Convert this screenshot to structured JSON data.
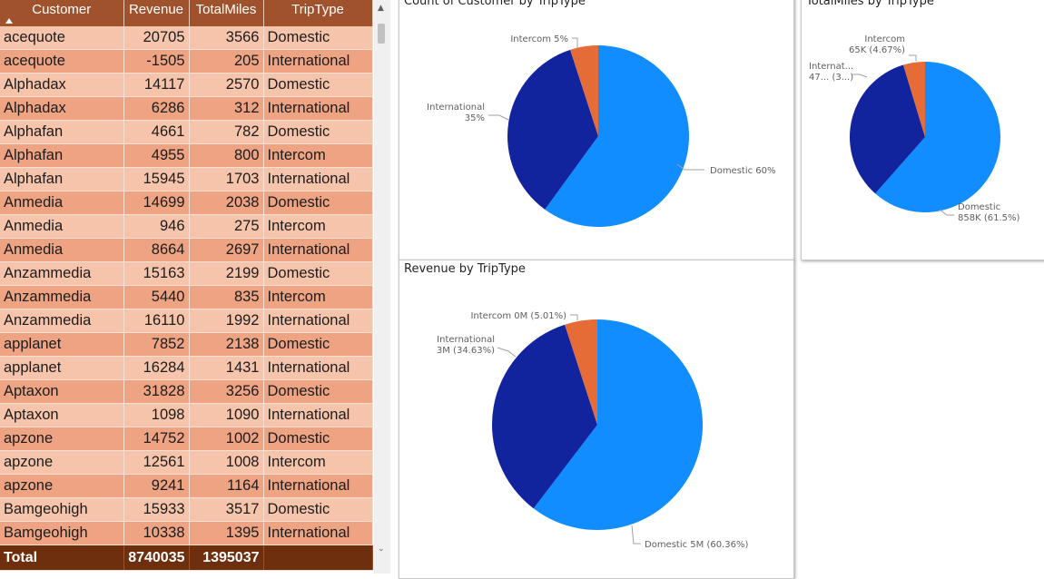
{
  "table": {
    "columns": [
      "Customer",
      "Revenue",
      "TotalMiles",
      "TripType"
    ],
    "rows": [
      [
        "acequote",
        "20705",
        "3566",
        "Domestic"
      ],
      [
        "acequote",
        "-1505",
        "205",
        "International"
      ],
      [
        "Alphadax",
        "14117",
        "2570",
        "Domestic"
      ],
      [
        "Alphadax",
        "6286",
        "312",
        "International"
      ],
      [
        "Alphafan",
        "4661",
        "782",
        "Domestic"
      ],
      [
        "Alphafan",
        "4955",
        "800",
        "Intercom"
      ],
      [
        "Alphafan",
        "15945",
        "1703",
        "International"
      ],
      [
        "Anmedia",
        "14699",
        "2038",
        "Domestic"
      ],
      [
        "Anmedia",
        "946",
        "275",
        "Intercom"
      ],
      [
        "Anmedia",
        "8664",
        "2697",
        "International"
      ],
      [
        "Anzammedia",
        "15163",
        "2199",
        "Domestic"
      ],
      [
        "Anzammedia",
        "5440",
        "835",
        "Intercom"
      ],
      [
        "Anzammedia",
        "16110",
        "1992",
        "International"
      ],
      [
        "applanet",
        "7852",
        "2138",
        "Domestic"
      ],
      [
        "applanet",
        "16284",
        "1431",
        "International"
      ],
      [
        "Aptaxon",
        "31828",
        "3256",
        "Domestic"
      ],
      [
        "Aptaxon",
        "1098",
        "1090",
        "International"
      ],
      [
        "apzone",
        "14752",
        "1002",
        "Domestic"
      ],
      [
        "apzone",
        "12561",
        "1008",
        "Intercom"
      ],
      [
        "apzone",
        "9241",
        "1164",
        "International"
      ],
      [
        "Bamgeohigh",
        "15933",
        "3517",
        "Domestic"
      ],
      [
        "Bamgeohigh",
        "10338",
        "1395",
        "International"
      ]
    ],
    "total": [
      "Total",
      "8740035",
      "1395037",
      ""
    ],
    "colors": {
      "header": "#a0522d",
      "row_light": "#f6c4ab",
      "row_dark": "#eea383",
      "total": "#6e2f0f"
    }
  },
  "colors": {
    "Domestic": "#118dff",
    "International": "#12239e",
    "Intercom": "#e66c37"
  },
  "chart_data": [
    {
      "type": "pie",
      "title": "Count of Customer by TripType",
      "categories": [
        "Domestic",
        "International",
        "Intercom"
      ],
      "values": [
        60,
        35,
        5
      ],
      "labels": [
        "Domestic 60%",
        "International|35%",
        "Intercom 5%"
      ]
    },
    {
      "type": "pie",
      "title": "TotalMiles by TripType",
      "categories": [
        "Domestic",
        "International",
        "Intercom"
      ],
      "values": [
        61.5,
        33.83,
        4.67
      ],
      "labels": [
        "Domestic|858K (61.5%)",
        "Internat...|47... (3...)",
        "Intercom|65K (4.67%)"
      ]
    },
    {
      "type": "pie",
      "title": "Revenue by TripType",
      "categories": [
        "Domestic",
        "International",
        "Intercom"
      ],
      "values": [
        60.36,
        34.63,
        5.01
      ],
      "labels": [
        "Domestic 5M (60.36%)",
        "International|3M (34.63%)",
        "Intercom 0M (5.01%)"
      ]
    }
  ]
}
